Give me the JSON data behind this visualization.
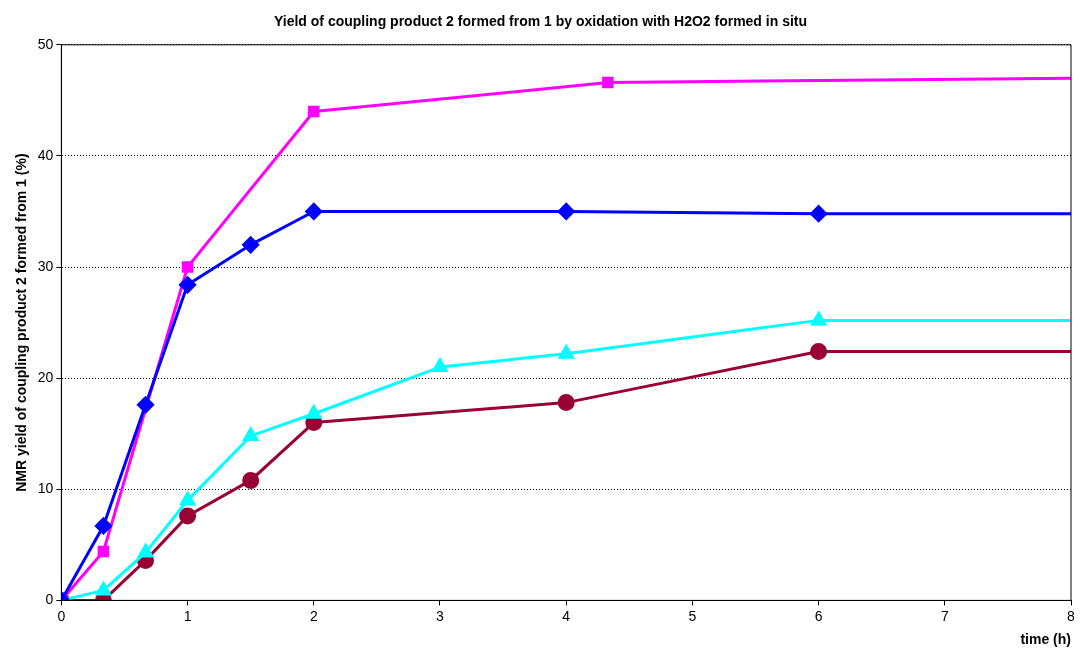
{
  "chart_data": {
    "type": "line",
    "title": "Yield of coupling product 2 formed from 1 by oxidation with H2O2 formed in situ",
    "xlabel": "time (h)",
    "ylabel": "NMR yield of coupling product 2 formed from 1 (%)",
    "xlim": [
      0,
      8
    ],
    "xticks": [
      0,
      1,
      2,
      3,
      4,
      5,
      6,
      7,
      8
    ],
    "ylim": [
      0,
      50
    ],
    "yticks": [
      0,
      10,
      20,
      30,
      40,
      50
    ],
    "grid": "y",
    "legend": false,
    "series": [
      {
        "color": "#0000ff",
        "marker": "diamond",
        "x": [
          0,
          0.333,
          0.667,
          1,
          1.5,
          2,
          4,
          6,
          8
        ],
        "values": [
          0,
          6.7,
          17.6,
          28.4,
          32,
          35,
          35,
          34.8,
          34.8
        ]
      },
      {
        "color": "#ff00ff",
        "marker": "square",
        "x": [
          0,
          0.333,
          1,
          2,
          4.33,
          8
        ],
        "values": [
          0,
          4.4,
          30,
          44,
          46.6,
          47
        ]
      },
      {
        "color": "#00ffff",
        "marker": "triangle",
        "x": [
          0,
          0.333,
          0.667,
          1,
          1.5,
          2,
          3,
          4,
          6,
          8
        ],
        "values": [
          0,
          0.9,
          4.3,
          9,
          14.8,
          16.8,
          21,
          22.2,
          25.2,
          25.2
        ]
      },
      {
        "color": "#990033",
        "marker": "circle",
        "x": [
          0,
          0.333,
          0.667,
          1,
          1.5,
          2,
          4,
          6,
          8
        ],
        "values": [
          0,
          0,
          3.6,
          7.6,
          10.8,
          16,
          17.8,
          22.4,
          22.4
        ]
      }
    ]
  }
}
